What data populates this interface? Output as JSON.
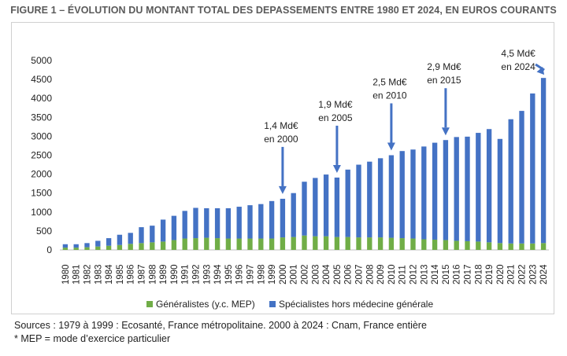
{
  "title": "FIGURE 1 – ÉVOLUTION DU MONTANT TOTAL DES DEPASSEMENTS ENTRE 1980 ET 2024, EN EUROS COURANTS",
  "sources": {
    "line1": "Sources : 1979 à 1999 : Ecosanté, France métropolitaine. 2000 à 2024 : Cnam, France entière",
    "line2": "* MEP = mode d’exercice particulier"
  },
  "colors": {
    "generalistes": "#70ad47",
    "specialistes": "#4472c4",
    "arrow": "#4472c4"
  },
  "chart_data": {
    "type": "bar",
    "stacked": true,
    "ylim": [
      0,
      5000
    ],
    "yticks": [
      0,
      500,
      1000,
      1500,
      2000,
      2500,
      3000,
      3500,
      4000,
      4500,
      5000
    ],
    "grid": false,
    "legend_position": "bottom",
    "categories": [
      "1980",
      "1981",
      "1982",
      "1983",
      "1984",
      "1985",
      "1986",
      "1987",
      "1988",
      "1989",
      "1990",
      "1991",
      "1992",
      "1993",
      "1994",
      "1995",
      "1996",
      "1997",
      "1998",
      "1999",
      "2000",
      "2001",
      "2002",
      "2003",
      "2004",
      "2005",
      "2006",
      "2007",
      "2008",
      "2009",
      "2010",
      "2011",
      "2012",
      "2013",
      "2014",
      "2015",
      "2016",
      "2017",
      "2018",
      "2019",
      "2020",
      "2021",
      "2022",
      "2023",
      "2024"
    ],
    "series": [
      {
        "name": "Généralistes (y.c. MEP)",
        "color": "#70ad47",
        "values": [
          60,
          60,
          70,
          90,
          110,
          130,
          160,
          180,
          200,
          220,
          260,
          300,
          310,
          320,
          310,
          300,
          300,
          300,
          300,
          300,
          330,
          340,
          380,
          360,
          360,
          340,
          340,
          330,
          330,
          330,
          320,
          310,
          300,
          280,
          270,
          260,
          240,
          230,
          220,
          200,
          180,
          170,
          170,
          170,
          180
        ]
      },
      {
        "name": "Spécialistes hors médecine générale",
        "color": "#4472c4",
        "values": [
          90,
          90,
          110,
          150,
          200,
          270,
          290,
          420,
          440,
          580,
          640,
          730,
          800,
          780,
          790,
          800,
          840,
          880,
          910,
          990,
          1020,
          1160,
          1420,
          1540,
          1630,
          1570,
          1780,
          1920,
          2000,
          2090,
          2180,
          2300,
          2350,
          2450,
          2560,
          2640,
          2740,
          2760,
          2870,
          2990,
          2750,
          3280,
          3500,
          3960,
          4360
        ]
      }
    ],
    "annotations": [
      {
        "year": "2000",
        "line1": "1,4 Md€",
        "line2": "en 2000"
      },
      {
        "year": "2005",
        "line1": "1,9 Md€",
        "line2": "en 2005"
      },
      {
        "year": "2010",
        "line1": "2,5 Md€",
        "line2": "en 2010"
      },
      {
        "year": "2015",
        "line1": "2,9 Md€",
        "line2": "en 2015"
      },
      {
        "year": "2024",
        "line1": "4,5 Md€",
        "line2": "en 2024"
      }
    ]
  }
}
